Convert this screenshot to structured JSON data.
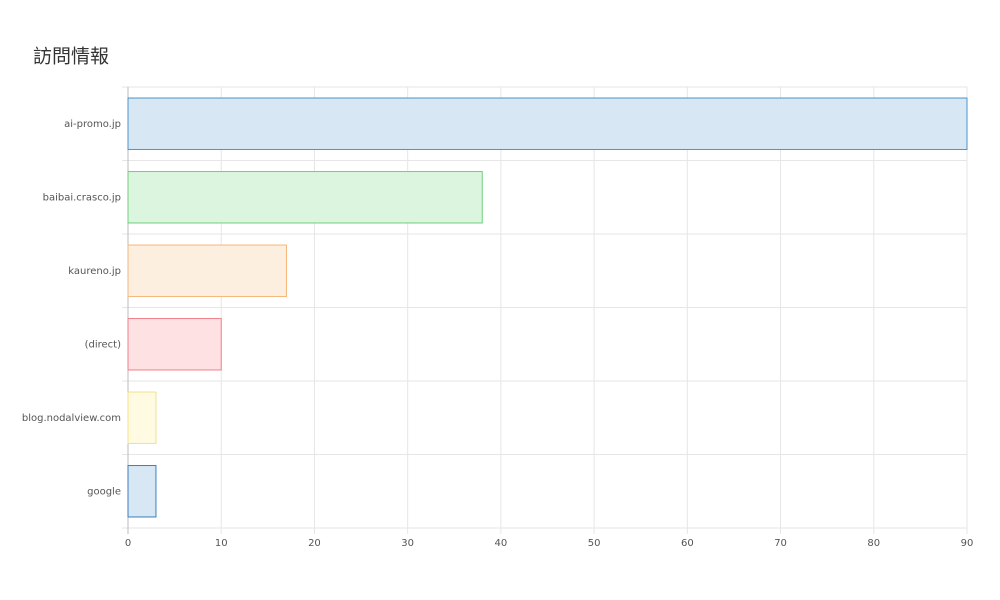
{
  "chart_data": {
    "type": "bar",
    "orientation": "horizontal",
    "title": "訪問情報",
    "categories": [
      "ai-promo.jp",
      "baibai.crasco.jp",
      "kaureno.jp",
      "(direct)",
      "blog.nodalview.com",
      "google"
    ],
    "values": [
      90,
      38,
      17,
      10,
      3,
      3
    ],
    "colors": [
      "#d8e7f4",
      "#dcf5df",
      "#fcefe0",
      "#fde1e3",
      "#fefbe2",
      "#d8e7f4"
    ],
    "border_colors": [
      "#4a94cc",
      "#6fcf7c",
      "#f5b77a",
      "#f07f8a",
      "#f5e08a",
      "#3a7fc0"
    ],
    "xlim": [
      0,
      90
    ],
    "xticks": [
      0,
      10,
      20,
      30,
      40,
      50,
      60,
      70,
      80,
      90
    ],
    "grid": true
  }
}
